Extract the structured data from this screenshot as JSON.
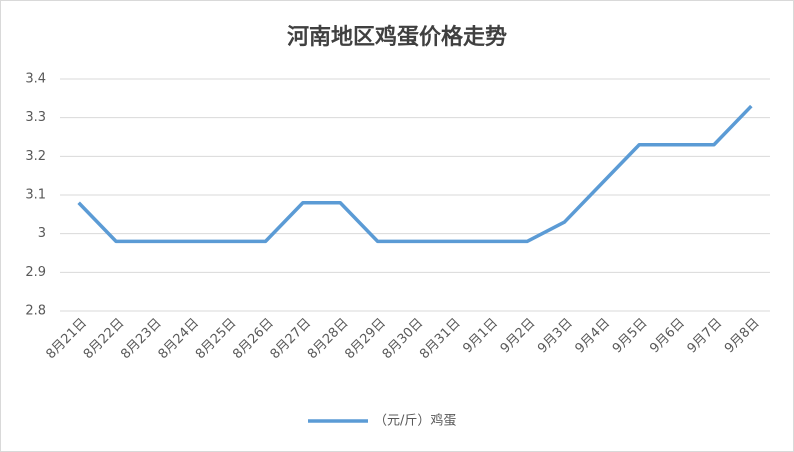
{
  "chart_data": {
    "type": "line",
    "title": "河南地区鸡蛋价格走势",
    "categories": [
      "8月21日",
      "8月22日",
      "8月23日",
      "8月24日",
      "8月25日",
      "8月26日",
      "8月27日",
      "8月28日",
      "8月29日",
      "8月30日",
      "8月31日",
      "9月1日",
      "9月2日",
      "9月3日",
      "9月4日",
      "9月5日",
      "9月6日",
      "9月7日",
      "9月8日"
    ],
    "series": [
      {
        "name": "（元/斤）鸡蛋",
        "color": "#5b9bd5",
        "values": [
          3.08,
          2.98,
          2.98,
          2.98,
          2.98,
          2.98,
          3.08,
          3.08,
          2.98,
          2.98,
          2.98,
          2.98,
          2.98,
          3.03,
          3.13,
          3.23,
          3.23,
          3.23,
          3.33
        ]
      }
    ],
    "ylim": [
      2.8,
      3.4
    ],
    "yticks": [
      2.8,
      2.9,
      3,
      3.1,
      3.2,
      3.3,
      3.4
    ],
    "grid": true,
    "legend": "bottom"
  }
}
